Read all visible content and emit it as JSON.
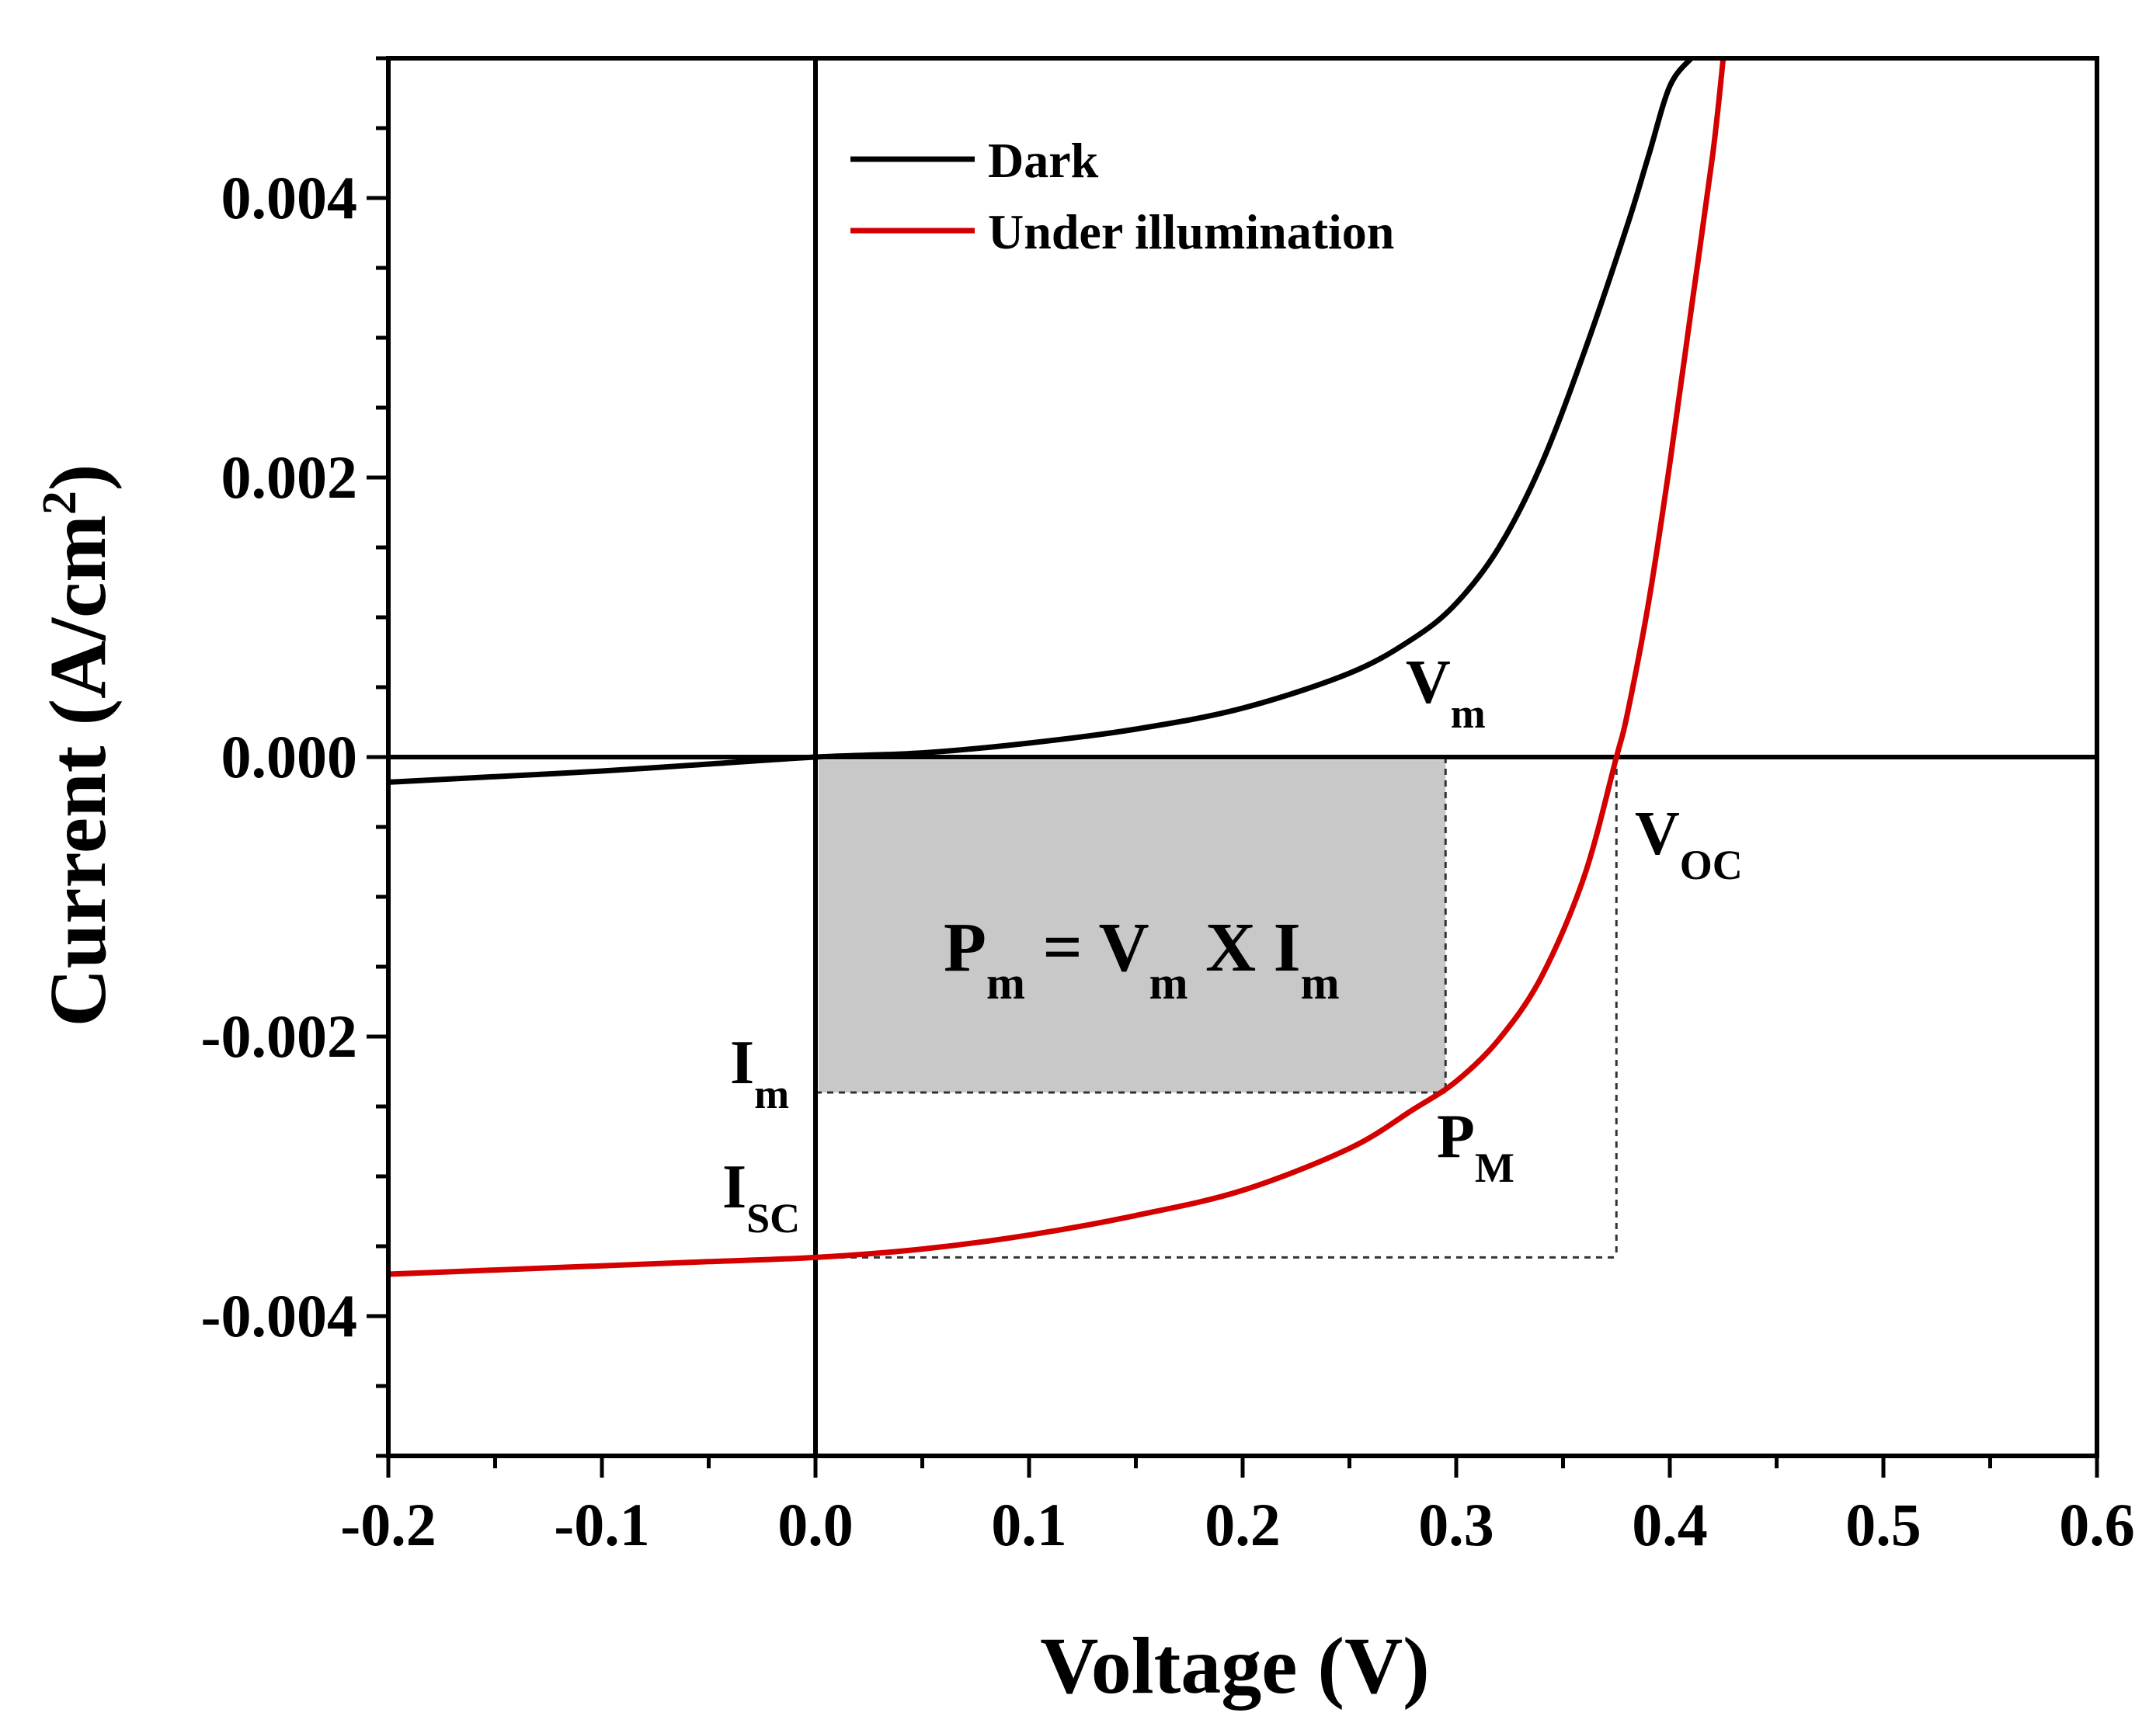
{
  "chart_data": {
    "type": "line",
    "title": "",
    "xlabel": "Voltage (V)",
    "ylabel": "Current (A/cm",
    "ylabel_sup": "2",
    "ylabel_close": ")",
    "xlim": [
      -0.2,
      0.6
    ],
    "ylim": [
      -0.005,
      0.005
    ],
    "x_ticks": [
      -0.2,
      -0.1,
      0.0,
      0.1,
      0.2,
      0.3,
      0.4,
      0.5,
      0.6
    ],
    "x_tick_labels": [
      "-0.2",
      "-0.1",
      "0.0",
      "0.1",
      "0.2",
      "0.3",
      "0.4",
      "0.5",
      "0.6"
    ],
    "y_ticks": [
      -0.004,
      -0.002,
      0.0,
      0.002,
      0.004
    ],
    "y_tick_labels": [
      "-0.004",
      "-0.002",
      "0.000",
      "0.002",
      "0.004"
    ],
    "grid": false,
    "legend_position": "top-left",
    "series": [
      {
        "name": "Dark",
        "color": "#000000",
        "x": [
          -0.2,
          -0.15,
          -0.1,
          -0.05,
          0.0,
          0.05,
          0.1,
          0.15,
          0.2,
          0.25,
          0.28,
          0.3,
          0.32,
          0.34,
          0.36,
          0.38,
          0.39,
          0.4,
          0.41
        ],
        "y": [
          -0.00018,
          -0.00014,
          -0.0001,
          -5e-05,
          0.0,
          3e-05,
          0.0001,
          0.0002,
          0.00035,
          0.0006,
          0.00085,
          0.0011,
          0.0015,
          0.0021,
          0.0029,
          0.0038,
          0.0043,
          0.0048,
          0.005
        ]
      },
      {
        "name": "Under illumination",
        "color": "#d40000",
        "x": [
          -0.2,
          -0.15,
          -0.1,
          -0.05,
          0.0,
          0.05,
          0.1,
          0.15,
          0.2,
          0.25,
          0.28,
          0.3,
          0.32,
          0.34,
          0.36,
          0.375,
          0.38,
          0.39,
          0.4,
          0.41,
          0.42,
          0.425
        ],
        "y": [
          -0.0037,
          -0.00367,
          -0.00364,
          -0.00361,
          -0.00358,
          -0.00352,
          -0.00342,
          -0.00328,
          -0.0031,
          -0.0028,
          -0.00252,
          -0.00232,
          -0.00202,
          -0.00157,
          -0.00085,
          0.0,
          0.0003,
          0.0011,
          0.0021,
          0.0032,
          0.0043,
          0.005
        ]
      }
    ],
    "annotations": {
      "vm": {
        "main": "V",
        "sub": "m"
      },
      "voc": {
        "main": "V",
        "sub": "OC"
      },
      "im": {
        "main": "I",
        "sub": "m"
      },
      "isc": {
        "main": "I",
        "sub": "SC"
      },
      "pm_point": {
        "main": "P",
        "sub": "M"
      },
      "formula": {
        "p": "P",
        "p_sub": "m",
        "eq": " = ",
        "v": "V",
        "v_sub": "m",
        "times": " X ",
        "i": "I",
        "i_sub": "m"
      }
    },
    "key_points": {
      "Voc": 0.375,
      "Isc": -0.00358,
      "Vm": 0.295,
      "Im": -0.0024
    },
    "power_rect_color": "#c8c8c8"
  }
}
